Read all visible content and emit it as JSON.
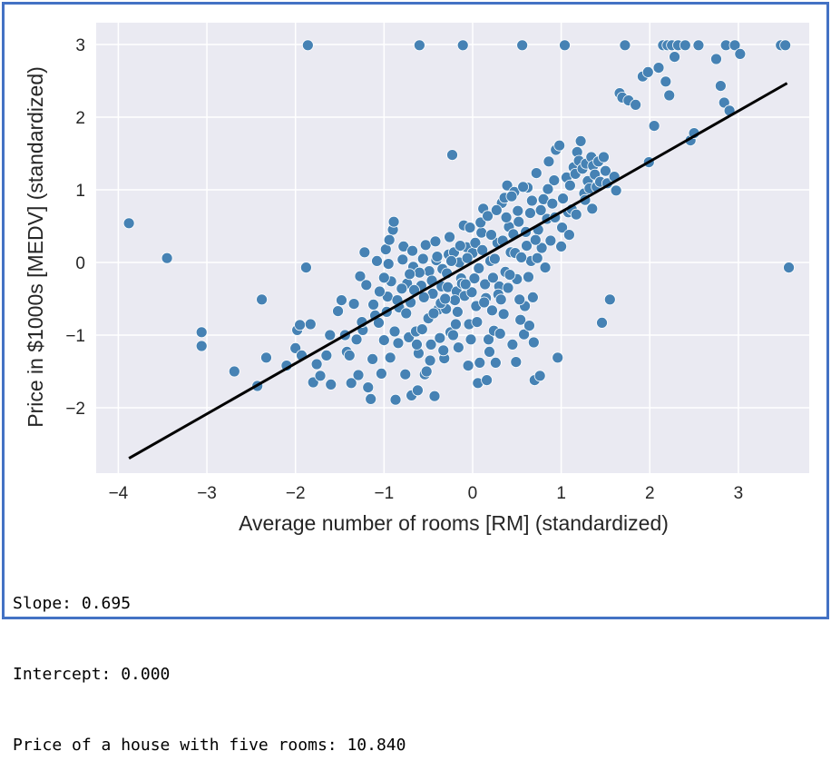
{
  "chart_data": {
    "type": "scatter",
    "xlabel": "Average number of rooms [RM] (standardized)",
    "ylabel": "Price in $1000s [MEDV] (standardized)",
    "xlim": [
      -4.25,
      3.8
    ],
    "ylim": [
      -2.9,
      3.3
    ],
    "xticks": [
      -4,
      -3,
      -2,
      -1,
      0,
      1,
      2,
      3
    ],
    "yticks": [
      -2,
      -1,
      0,
      1,
      2,
      3
    ],
    "grid": true,
    "background": "#eaeaf2",
    "point_color": "#4682b4",
    "line_color": "#000000",
    "fit_line": {
      "slope": 0.695,
      "intercept": 0.0,
      "x_range": [
        -3.88,
        3.55
      ]
    },
    "points": [
      [
        -3.88,
        0.54
      ],
      [
        -3.45,
        0.06
      ],
      [
        -3.06,
        -0.96
      ],
      [
        -3.06,
        -1.15
      ],
      [
        -2.69,
        -1.5
      ],
      [
        -2.43,
        -1.7
      ],
      [
        -2.38,
        -0.51
      ],
      [
        -2.33,
        -1.31
      ],
      [
        -2.0,
        -1.18
      ],
      [
        -1.98,
        -0.93
      ],
      [
        -1.95,
        -0.86
      ],
      [
        -1.93,
        -1.28
      ],
      [
        -1.86,
        2.99
      ],
      [
        -1.88,
        -0.07
      ],
      [
        -1.83,
        -0.85
      ],
      [
        -1.8,
        -1.65
      ],
      [
        -1.76,
        -1.4
      ],
      [
        -1.72,
        -1.56
      ],
      [
        -1.61,
        -1.0
      ],
      [
        -1.52,
        -0.67
      ],
      [
        -1.48,
        -0.52
      ],
      [
        -1.42,
        -1.23
      ],
      [
        -1.39,
        -1.28
      ],
      [
        -1.37,
        -1.66
      ],
      [
        -1.34,
        -0.57
      ],
      [
        -1.31,
        -1.06
      ],
      [
        -1.29,
        -1.55
      ],
      [
        -1.27,
        -0.19
      ],
      [
        -1.24,
        -0.93
      ],
      [
        -1.22,
        0.14
      ],
      [
        -1.2,
        -0.31
      ],
      [
        -1.18,
        -1.72
      ],
      [
        -1.15,
        -1.88
      ],
      [
        -1.13,
        -1.33
      ],
      [
        -1.1,
        -0.73
      ],
      [
        -1.06,
        -0.83
      ],
      [
        -1.03,
        -1.53
      ],
      [
        -1.0,
        -1.07
      ],
      [
        -0.98,
        0.18
      ],
      [
        -0.96,
        -0.47
      ],
      [
        -0.95,
        -0.02
      ],
      [
        -0.93,
        -1.31
      ],
      [
        -0.9,
        0.45
      ],
      [
        -0.89,
        0.56
      ],
      [
        -0.87,
        -1.89
      ],
      [
        -0.84,
        -1.11
      ],
      [
        -0.83,
        -0.62
      ],
      [
        -0.79,
        0.04
      ],
      [
        -0.76,
        -1.54
      ],
      [
        -0.74,
        -0.29
      ],
      [
        -0.72,
        -1.03
      ],
      [
        -0.7,
        -0.55
      ],
      [
        -0.69,
        -1.83
      ],
      [
        -0.67,
        -0.06
      ],
      [
        -0.64,
        -0.95
      ],
      [
        -0.62,
        -1.76
      ],
      [
        -0.61,
        -1.25
      ],
      [
        -0.6,
        2.99
      ],
      [
        -0.58,
        -0.32
      ],
      [
        -0.56,
        0.05
      ],
      [
        -0.54,
        -1.54
      ],
      [
        -0.52,
        -1.5
      ],
      [
        -0.5,
        -0.77
      ],
      [
        -0.49,
        -0.12
      ],
      [
        -0.47,
        -1.13
      ],
      [
        -0.45,
        -0.43
      ],
      [
        -0.43,
        -1.84
      ],
      [
        -0.41,
        0.03
      ],
      [
        -0.39,
        -0.65
      ],
      [
        -0.37,
        -1.04
      ],
      [
        -0.35,
        -0.33
      ],
      [
        -0.34,
        -0.09
      ],
      [
        -0.32,
        -1.32
      ],
      [
        -0.3,
        -0.64
      ],
      [
        -0.28,
        -0.34
      ],
      [
        -0.27,
        0.11
      ],
      [
        -0.25,
        -0.96
      ],
      [
        -0.23,
        1.48
      ],
      [
        -0.22,
        -1.0
      ],
      [
        -0.21,
        0.14
      ],
      [
        -0.19,
        -0.85
      ],
      [
        -0.18,
        -0.4
      ],
      [
        -0.16,
        -1.17
      ],
      [
        -0.15,
        0.0
      ],
      [
        -0.13,
        -0.22
      ],
      [
        -0.11,
        2.99
      ],
      [
        -0.1,
        0.51
      ],
      [
        -0.09,
        -0.46
      ],
      [
        -0.07,
        0.21
      ],
      [
        -0.05,
        -1.42
      ],
      [
        -0.04,
        -0.85
      ],
      [
        -0.02,
        -1.06
      ],
      [
        0.0,
        0.13
      ],
      [
        0.02,
        -0.22
      ],
      [
        0.04,
        -0.6
      ],
      [
        0.06,
        -1.66
      ],
      [
        0.08,
        -1.38
      ],
      [
        0.1,
        0.41
      ],
      [
        0.12,
        0.74
      ],
      [
        0.14,
        -0.3
      ],
      [
        0.16,
        -1.62
      ],
      [
        0.18,
        -1.06
      ],
      [
        0.2,
        0.02
      ],
      [
        0.22,
        -0.66
      ],
      [
        0.24,
        -0.94
      ],
      [
        0.26,
        -1.38
      ],
      [
        0.28,
        0.27
      ],
      [
        0.3,
        -0.33
      ],
      [
        0.33,
        0.82
      ],
      [
        0.35,
        -0.71
      ],
      [
        0.37,
        -0.13
      ],
      [
        0.39,
        1.06
      ],
      [
        0.41,
        0.49
      ],
      [
        0.43,
        0.14
      ],
      [
        0.45,
        -1.13
      ],
      [
        0.47,
        0.97
      ],
      [
        0.48,
        0.13
      ],
      [
        0.5,
        -0.23
      ],
      [
        0.52,
        0.56
      ],
      [
        0.54,
        -0.79
      ],
      [
        0.56,
        2.99
      ],
      [
        0.58,
        -0.99
      ],
      [
        0.59,
        -0.6
      ],
      [
        0.61,
        0.23
      ],
      [
        0.62,
        1.03
      ],
      [
        0.64,
        -0.87
      ],
      [
        0.66,
        0.02
      ],
      [
        0.68,
        -0.48
      ],
      [
        0.7,
        -1.62
      ],
      [
        0.72,
        1.23
      ],
      [
        0.74,
        0.45
      ],
      [
        0.76,
        -1.56
      ],
      [
        0.78,
        0.2
      ],
      [
        0.8,
        0.87
      ],
      [
        0.82,
        -0.07
      ],
      [
        0.84,
        0.6
      ],
      [
        0.86,
        1.39
      ],
      [
        0.88,
        0.3
      ],
      [
        0.9,
        0.81
      ],
      [
        0.92,
        1.13
      ],
      [
        0.94,
        1.55
      ],
      [
        0.96,
        -1.31
      ],
      [
        0.98,
        1.61
      ],
      [
        1.0,
        0.22
      ],
      [
        1.02,
        0.88
      ],
      [
        1.04,
        2.99
      ],
      [
        1.06,
        1.17
      ],
      [
        1.08,
        0.69
      ],
      [
        1.1,
        1.06
      ],
      [
        1.12,
        0.73
      ],
      [
        1.14,
        1.31
      ],
      [
        1.16,
        1.22
      ],
      [
        1.18,
        1.52
      ],
      [
        1.2,
        1.4
      ],
      [
        1.22,
        1.67
      ],
      [
        1.24,
        1.29
      ],
      [
        1.26,
        0.95
      ],
      [
        1.28,
        1.36
      ],
      [
        1.3,
        1.12
      ],
      [
        1.32,
        1.02
      ],
      [
        1.34,
        1.45
      ],
      [
        1.36,
        1.33
      ],
      [
        1.38,
        1.21
      ],
      [
        1.4,
        1.04
      ],
      [
        1.42,
        1.39
      ],
      [
        1.44,
        1.11
      ],
      [
        1.46,
        -0.83
      ],
      [
        1.48,
        1.45
      ],
      [
        1.5,
        1.26
      ],
      [
        1.52,
        1.09
      ],
      [
        1.55,
        -0.51
      ],
      [
        1.6,
        1.18
      ],
      [
        1.62,
        0.99
      ],
      [
        1.66,
        2.33
      ],
      [
        1.69,
        2.27
      ],
      [
        1.72,
        2.99
      ],
      [
        1.76,
        2.23
      ],
      [
        1.84,
        2.17
      ],
      [
        1.92,
        2.56
      ],
      [
        1.98,
        2.62
      ],
      [
        1.99,
        1.38
      ],
      [
        2.05,
        1.88
      ],
      [
        2.1,
        2.68
      ],
      [
        2.15,
        2.99
      ],
      [
        2.18,
        2.49
      ],
      [
        2.2,
        2.99
      ],
      [
        2.22,
        2.3
      ],
      [
        2.25,
        2.99
      ],
      [
        2.28,
        2.83
      ],
      [
        2.32,
        2.99
      ],
      [
        2.4,
        2.99
      ],
      [
        2.46,
        1.68
      ],
      [
        2.5,
        1.78
      ],
      [
        2.55,
        2.99
      ],
      [
        2.75,
        2.8
      ],
      [
        2.8,
        2.43
      ],
      [
        2.84,
        2.2
      ],
      [
        2.86,
        2.99
      ],
      [
        2.9,
        2.09
      ],
      [
        2.96,
        2.99
      ],
      [
        3.02,
        2.87
      ],
      [
        3.48,
        2.99
      ],
      [
        3.53,
        2.99
      ],
      [
        3.57,
        -0.07
      ],
      [
        -0.66,
        -0.38
      ],
      [
        -0.6,
        -0.14
      ],
      [
        -0.55,
        -0.48
      ],
      [
        -0.46,
        -0.25
      ],
      [
        -0.4,
        0.08
      ],
      [
        -0.36,
        -0.56
      ],
      [
        -0.29,
        -0.15
      ],
      [
        -0.24,
        0.02
      ],
      [
        -0.2,
        -0.52
      ],
      [
        -0.14,
        0.23
      ],
      [
        -0.12,
        -0.29
      ],
      [
        -0.06,
        0.06
      ],
      [
        -0.01,
        -0.41
      ],
      [
        0.03,
        0.27
      ],
      [
        0.07,
        -0.08
      ],
      [
        0.11,
        0.17
      ],
      [
        0.15,
        -0.49
      ],
      [
        0.21,
        0.38
      ],
      [
        0.25,
        0.05
      ],
      [
        0.29,
        -0.44
      ],
      [
        0.34,
        0.3
      ],
      [
        0.38,
        0.62
      ],
      [
        0.42,
        -0.17
      ],
      [
        0.46,
        0.39
      ],
      [
        0.51,
        0.71
      ],
      [
        0.55,
        0.07
      ],
      [
        0.6,
        0.42
      ],
      [
        0.65,
        0.68
      ],
      [
        0.71,
        0.31
      ],
      [
        -0.8,
        -0.36
      ],
      [
        -0.75,
        -0.7
      ],
      [
        -0.71,
        -0.16
      ],
      [
        -0.57,
        -0.92
      ],
      [
        -0.44,
        -0.7
      ],
      [
        -0.31,
        -0.5
      ],
      [
        -0.17,
        -0.68
      ],
      [
        -0.08,
        -0.3
      ],
      [
        0.05,
        -0.82
      ],
      [
        0.13,
        -0.55
      ],
      [
        0.23,
        -0.21
      ],
      [
        0.32,
        -0.51
      ],
      [
        0.4,
        -0.35
      ],
      [
        0.53,
        -0.51
      ],
      [
        0.63,
        -0.2
      ],
      [
        0.73,
        0.06
      ],
      [
        -1.05,
        -0.4
      ],
      [
        -0.92,
        -0.26
      ],
      [
        -0.85,
        -0.52
      ],
      [
        -0.78,
        0.22
      ],
      [
        -0.68,
        0.16
      ],
      [
        -0.53,
        0.24
      ],
      [
        -0.42,
        0.29
      ],
      [
        -0.26,
        0.35
      ],
      [
        -0.03,
        0.48
      ],
      [
        0.09,
        0.55
      ],
      [
        0.17,
        0.64
      ],
      [
        0.27,
        0.72
      ],
      [
        0.36,
        0.89
      ],
      [
        0.44,
        0.91
      ],
      [
        0.57,
        1.04
      ],
      [
        0.67,
        0.85
      ],
      [
        0.77,
        0.72
      ],
      [
        0.85,
        1.01
      ],
      [
        0.93,
        0.62
      ],
      [
        1.01,
        0.48
      ],
      [
        1.09,
        0.38
      ],
      [
        1.17,
        0.66
      ],
      [
        1.27,
        0.86
      ],
      [
        1.35,
        0.74
      ],
      [
        -1.12,
        -0.58
      ],
      [
        -1.25,
        -0.82
      ],
      [
        -1.44,
        -1.0
      ],
      [
        -0.97,
        -0.68
      ],
      [
        -0.88,
        -0.95
      ],
      [
        -0.63,
        -1.13
      ],
      [
        -0.48,
        -1.35
      ],
      [
        -0.33,
        -1.21
      ],
      [
        0.19,
        -1.23
      ],
      [
        0.31,
        -0.98
      ],
      [
        0.49,
        -1.37
      ],
      [
        0.69,
        -1.1
      ],
      [
        -1.6,
        -1.68
      ],
      [
        -2.1,
        -1.42
      ],
      [
        -1.65,
        -1.28
      ],
      [
        -1.0,
        -0.21
      ],
      [
        -1.08,
        0.02
      ],
      [
        -0.94,
        0.31
      ]
    ]
  },
  "output": {
    "slope_line": "Slope: 0.695",
    "intercept_line": "Intercept: 0.000",
    "price_line": "Price of a house with five rooms: 10.840"
  }
}
